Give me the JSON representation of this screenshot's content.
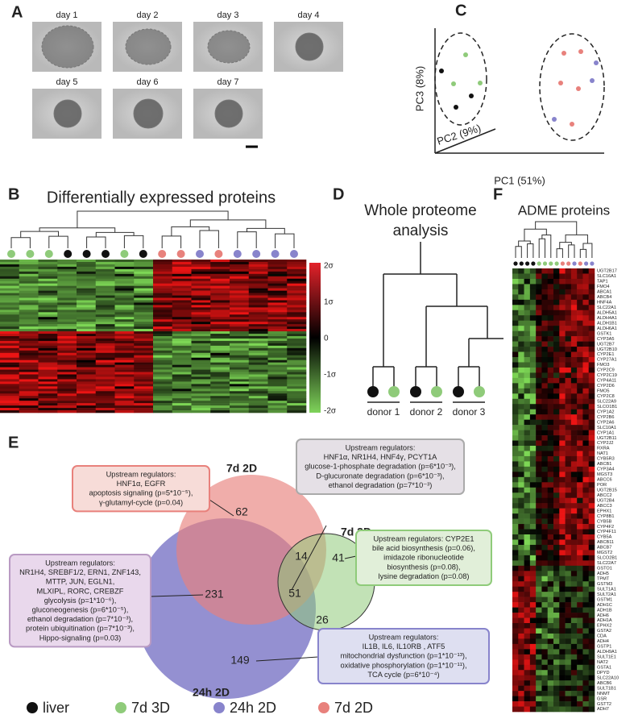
{
  "panels": [
    "A",
    "B",
    "C",
    "D",
    "E",
    "F"
  ],
  "a": {
    "days": [
      "day 1",
      "day 2",
      "day 3",
      "day 4",
      "day 5",
      "day 6",
      "day 7"
    ]
  },
  "b": {
    "title": "Differentially expressed proteins",
    "scale": [
      "2σ",
      "1σ",
      "0",
      "-1σ",
      "-2σ"
    ]
  },
  "c": {
    "y_label": "PC3 (8%)",
    "z_label": "PC2 (9%)",
    "x_label": "PC1 (51%)"
  },
  "d": {
    "title": [
      "Whole proteome",
      "analysis"
    ],
    "donors": [
      "donor 1",
      "donor 2",
      "donor 3"
    ]
  },
  "e": {
    "sets": [
      {
        "label": "7d 2D",
        "color": "#e8817c"
      },
      {
        "label": "7d 3D",
        "color": "#8fcb7a"
      },
      {
        "label": "24h 2D",
        "color": "#8884cc"
      }
    ],
    "counts": {
      "only_7d2d": 62,
      "7d2d_7d3d": 14,
      "only_7d3d": 41,
      "all": 51,
      "7d2d_24h": 231,
      "24h_7d3d": 26,
      "only_24h": 149
    },
    "boxes": [
      [
        "Upstream regulators:",
        "HNF1α, EGFR",
        "apoptosis signaling (p=5*10⁻⁵),",
        "γ-glutamyl-cycle (p=0.04)"
      ],
      [
        "Upstream regulators:",
        "HNF1α, NR1H4, HNF4γ, PCYT1A",
        "glucose-1-phosphate degradation (p=6*10⁻³),",
        "D-glucuronate degradation (p=6*10⁻³),",
        "ethanol degradation (p=7*10⁻³)"
      ],
      [
        "Upstream regulators:",
        "NR1H4, SREBF1/2, ERN1, ZNF143,",
        "MTTP, JUN, EGLN1,",
        "MLXIPL, RORC, CREBZF",
        "glycolysis (p=1*10⁻⁶),",
        "gluconeogenesis (p=6*10⁻⁵),",
        "ethanol degradation (p=7*10⁻³),",
        "protein ubiquitination (p=7*10⁻³),",
        "Hippo-signaling (p=0.03)"
      ],
      [
        "Upstream regulators: CYP2E1",
        "bile acid biosynthesis (p=0.06),",
        "imidazole ribonucleotide",
        "biosynthesis (p=0.08),",
        "lysine degradation (p=0.08)"
      ],
      [
        "Upstream regulators:",
        "IL1B, IL6, IL10RB , ATF5",
        "mitochondrial dysfunction (p=1*10⁻¹³),",
        "oxidative phosphorylation (p=1*10⁻¹¹),",
        "TCA cycle (p=6*10⁻⁴)"
      ]
    ]
  },
  "legend": [
    {
      "name": "liver",
      "color": "#111111"
    },
    {
      "name": "7d 3D",
      "color": "#8fcb7a"
    },
    {
      "name": "24h 2D",
      "color": "#8884cc"
    },
    {
      "name": "7d 2D",
      "color": "#e8817c"
    }
  ],
  "f": {
    "title": "ADME proteins",
    "genes": [
      "UGT2B17",
      "SLC16A1",
      "TAP1",
      "FMO4",
      "ABCA1",
      "ABCB4",
      "HNF4A",
      "SLC22A1",
      "ALDH5A1",
      "ALDH4A1",
      "ALDH1B1",
      "ALDH6A1",
      "GSTK1",
      "CYP3A5",
      "UGT2B7",
      "UGT2B10",
      "CYP2E1",
      "CYP27A1",
      "FMO3",
      "CYP2C9",
      "CYP2C19",
      "CYP4A11",
      "CYP2D6",
      "FMO5",
      "CYP2C8",
      "SLC22A9",
      "SLCO1B1",
      "CYP1A2",
      "CYP2B6",
      "CYP2A6",
      "SLC10A1",
      "CYP1A1",
      "UGT2B11",
      "CYP2J2",
      "RXRA",
      "NAT1",
      "CYB5R3",
      "ABCB1",
      "CYP3A4",
      "MGST3",
      "ABCC6",
      "POR",
      "UGT2B15",
      "ABCC2",
      "UGT2B4",
      "ABCC3",
      "EPHX1",
      "CYP8B1",
      "CYB5B",
      "CYP4F2",
      "CYP4F11",
      "CYB5A",
      "ABCB11",
      "ABCB7",
      "MGST2",
      "SLCO2B1",
      "SLC22A7",
      "GSTO1",
      "ADH5",
      "TPMT",
      "GSTM3",
      "SULT1A1",
      "SULT2A1",
      "GSTM1",
      "ADH1C",
      "ADH1B",
      "ADH6",
      "ADH1A",
      "EPHX2",
      "GSTA2",
      "CDA",
      "ADH4",
      "GSTP1",
      "ALDH9A1",
      "SULT1E1",
      "NAT2",
      "GSTA1",
      "DPYD",
      "SLC22A10",
      "ABCB6",
      "SULT1B1",
      "NNMT",
      "GSR",
      "GSTT2",
      "ADH7"
    ]
  }
}
